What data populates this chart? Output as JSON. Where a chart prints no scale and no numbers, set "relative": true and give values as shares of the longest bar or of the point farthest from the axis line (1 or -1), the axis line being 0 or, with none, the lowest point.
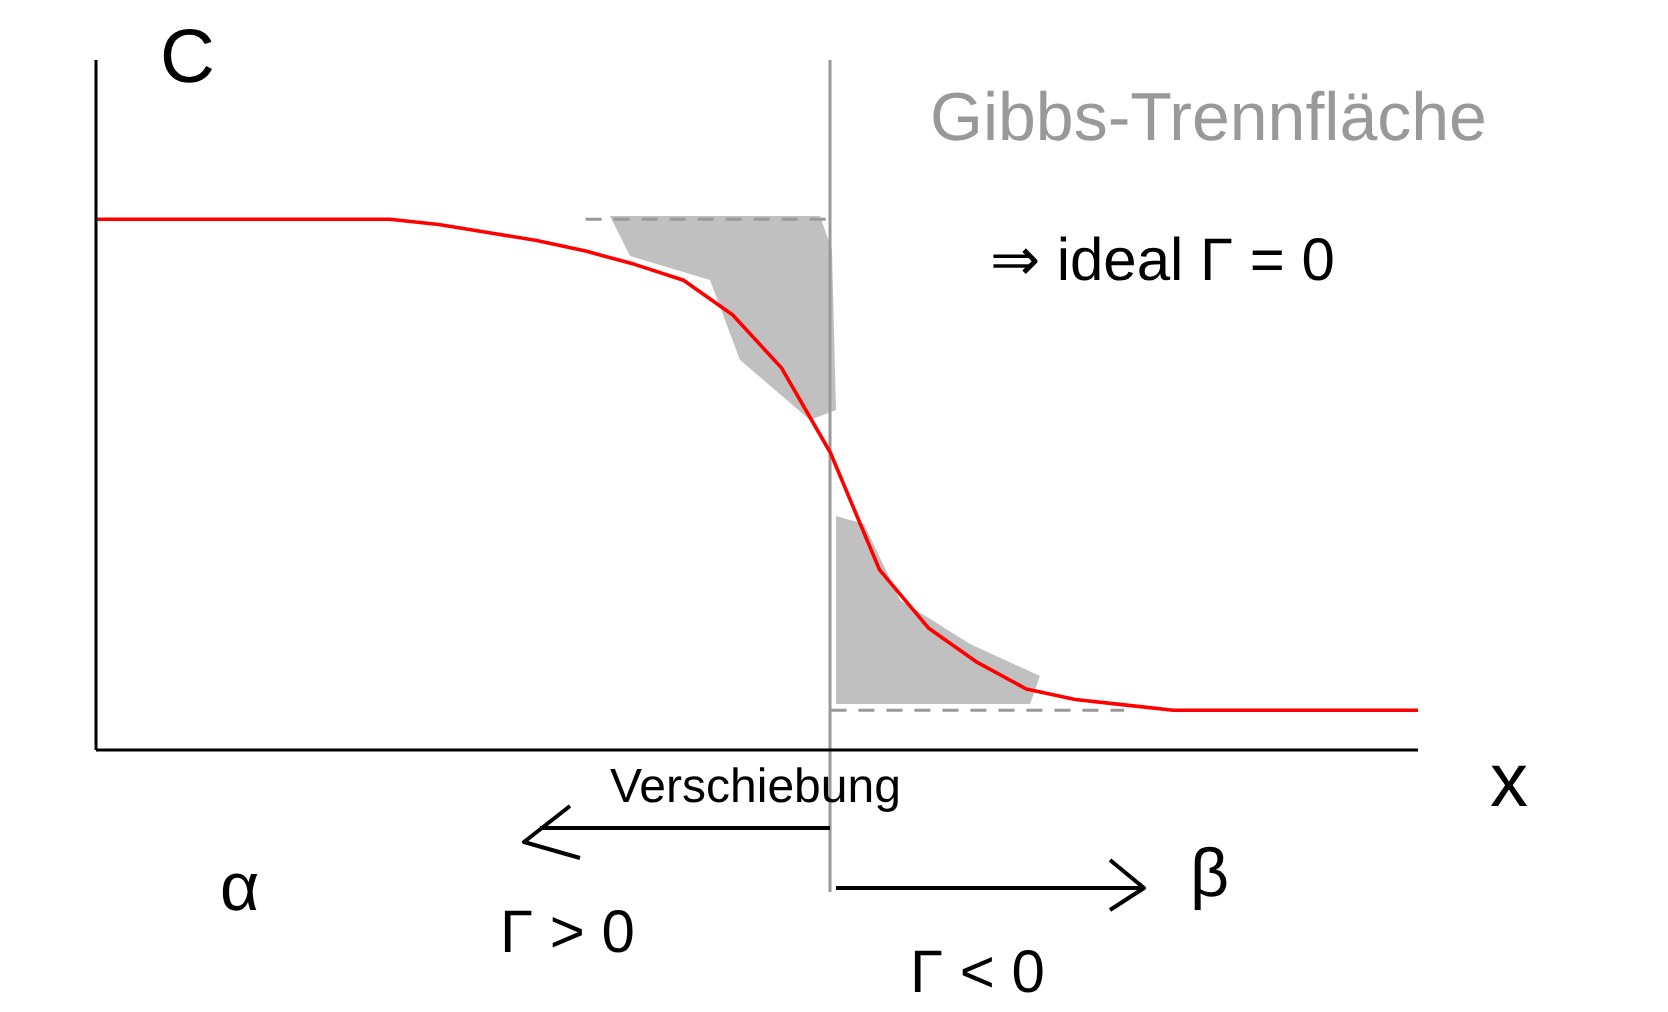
{
  "chart_data": {
    "type": "line",
    "relative": true,
    "xlabel": "x",
    "ylabel": "C",
    "categories": [
      null,
      null,
      null,
      null,
      null,
      null,
      null,
      null,
      null,
      null,
      null,
      null,
      null,
      null,
      null,
      null,
      null,
      null,
      null,
      null,
      null,
      null,
      null,
      null,
      null,
      null,
      null,
      null
    ],
    "series": [
      {
        "color": "#ff0000",
        "values": [
          1,
          1,
          1,
          1,
          1,
          1,
          1,
          0.99,
          0.975,
          0.96,
          0.94,
          0.915,
          0.885,
          0.82,
          0.72,
          0.56,
          0.34,
          0.23,
          0.165,
          0.115,
          0.095,
          0.085,
          0.075,
          0.075,
          0.075,
          0.075,
          0.075,
          0.075
        ]
      },
      {
        "color": "#999999",
        "line_style": "dashed",
        "values": [
          null,
          null,
          null,
          null,
          null,
          null,
          null,
          null,
          null,
          null,
          1,
          1,
          1,
          1,
          1,
          1,
          null,
          null,
          null,
          null,
          null,
          null,
          null,
          null,
          null,
          null,
          null,
          null
        ]
      },
      {
        "color": "#999999",
        "line_style": "dashed",
        "values": [
          null,
          null,
          null,
          null,
          null,
          null,
          null,
          null,
          null,
          null,
          null,
          null,
          null,
          null,
          null,
          0.075,
          0.075,
          0.075,
          0.075,
          0.075,
          0.075,
          0.075,
          null,
          null,
          null,
          null,
          null,
          null
        ]
      }
    ],
    "title": "Gibbs-Trennfläche",
    "annotations": [
      "⇒ ideal Γ = 0",
      "α",
      "Verschiebung",
      "Γ > 0",
      "β",
      "Γ < 0"
    ]
  }
}
